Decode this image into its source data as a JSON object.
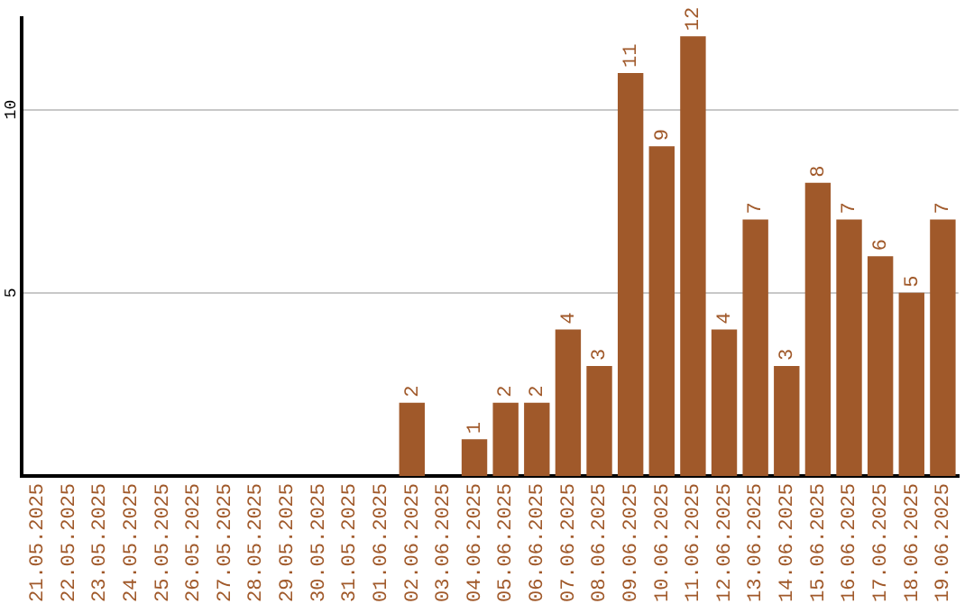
{
  "chart_data": {
    "type": "bar",
    "categories": [
      "21.05.2025",
      "22.05.2025",
      "23.05.2025",
      "24.05.2025",
      "25.05.2025",
      "26.05.2025",
      "27.05.2025",
      "28.05.2025",
      "29.05.2025",
      "30.05.2025",
      "31.05.2025",
      "01.06.2025",
      "02.06.2025",
      "03.06.2025",
      "04.06.2025",
      "05.06.2025",
      "06.06.2025",
      "07.06.2025",
      "08.06.2025",
      "09.06.2025",
      "10.06.2025",
      "11.06.2025",
      "12.06.2025",
      "13.06.2025",
      "14.06.2025",
      "15.06.2025",
      "16.06.2025",
      "17.06.2025",
      "18.06.2025",
      "19.06.2025"
    ],
    "values": [
      0,
      0,
      0,
      0,
      0,
      0,
      0,
      0,
      0,
      0,
      0,
      0,
      2,
      0,
      1,
      2,
      2,
      4,
      3,
      11,
      9,
      12,
      4,
      7,
      3,
      8,
      7,
      6,
      5,
      7
    ],
    "value_labels": [
      null,
      null,
      null,
      null,
      null,
      null,
      null,
      null,
      null,
      null,
      null,
      null,
      "2",
      null,
      "1",
      "2",
      "2",
      "4",
      "3",
      "11",
      "9",
      "12",
      "4",
      "7",
      "3",
      "8",
      "7",
      "6",
      "5",
      "7"
    ],
    "color": "#a0592a",
    "ylim": [
      0,
      12.5
    ],
    "yticks": [
      5,
      10
    ],
    "grid": "y",
    "legend": false
  }
}
